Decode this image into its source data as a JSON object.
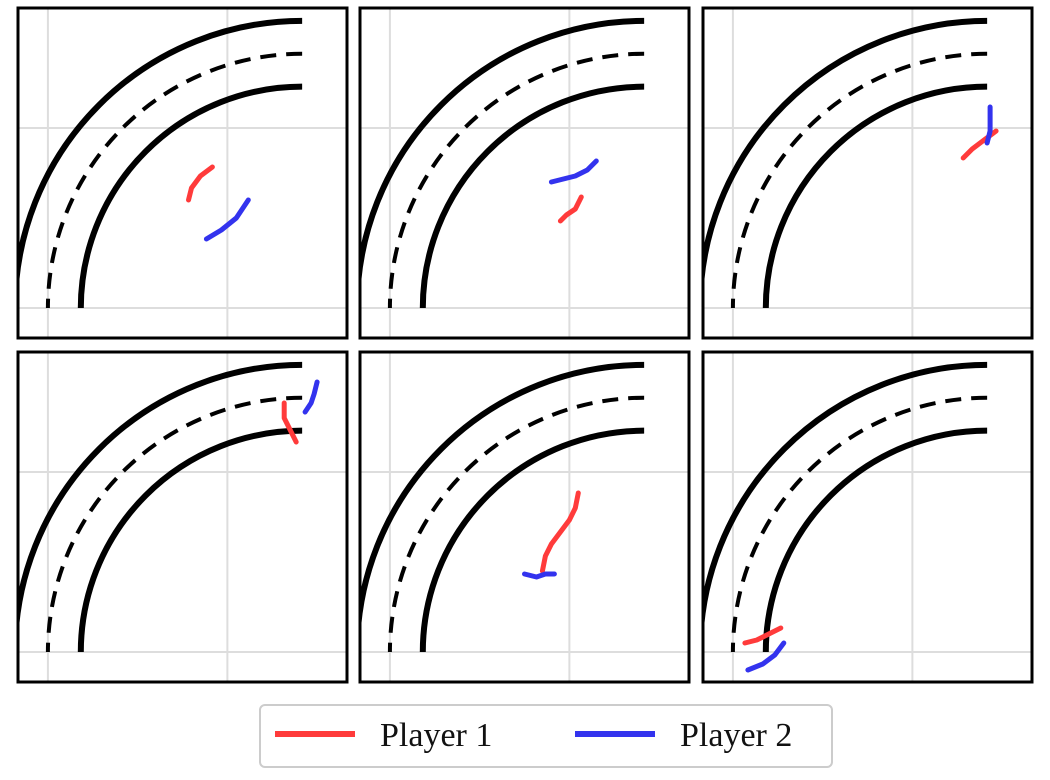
{
  "chart_data": {
    "type": "line",
    "title": "",
    "xlabel": "",
    "ylabel": "",
    "grid": true,
    "legend_position": "bottom-center",
    "layout": "2x3 panel grid",
    "xlim": [
      -1,
      10
    ],
    "ylim": [
      -1,
      10
    ],
    "grid_ticks": [
      0,
      6
    ],
    "track": {
      "center": [
        8.5,
        0
      ],
      "inner_radius": 7.4,
      "lane_divider_radius": 8.5,
      "outer_radius": 9.6,
      "angle_range_deg": [
        90,
        180
      ]
    },
    "series": [
      {
        "name": "Player 1",
        "color": "#ff3b3b"
      },
      {
        "name": "Player 2",
        "color": "#3333ee"
      }
    ],
    "panels": [
      {
        "trajectories": [
          {
            "series": "Player 1",
            "points": [
              [
                5.5,
                4.7
              ],
              [
                5.1,
                4.4
              ],
              [
                4.8,
                4.0
              ],
              [
                4.7,
                3.6
              ]
            ]
          },
          {
            "series": "Player 2",
            "points": [
              [
                6.7,
                3.6
              ],
              [
                6.3,
                3.0
              ],
              [
                5.8,
                2.6
              ],
              [
                5.3,
                2.3
              ]
            ]
          }
        ]
      },
      {
        "trajectories": [
          {
            "series": "Player 1",
            "points": [
              [
                6.4,
                3.7
              ],
              [
                6.2,
                3.3
              ],
              [
                5.9,
                3.1
              ],
              [
                5.7,
                2.9
              ]
            ]
          },
          {
            "series": "Player 2",
            "points": [
              [
                6.9,
                4.9
              ],
              [
                6.6,
                4.6
              ],
              [
                6.2,
                4.4
              ],
              [
                5.4,
                4.2
              ]
            ]
          }
        ]
      },
      {
        "trajectories": [
          {
            "series": "Player 1",
            "points": [
              [
                8.8,
                5.9
              ],
              [
                8.4,
                5.6
              ],
              [
                8.0,
                5.3
              ],
              [
                7.7,
                5.0
              ]
            ]
          },
          {
            "series": "Player 2",
            "points": [
              [
                8.6,
                6.7
              ],
              [
                8.6,
                6.3
              ],
              [
                8.6,
                5.9
              ],
              [
                8.5,
                5.5
              ]
            ]
          }
        ]
      },
      {
        "trajectories": [
          {
            "series": "Player 1",
            "points": [
              [
                7.9,
                8.3
              ],
              [
                7.9,
                7.8
              ],
              [
                8.1,
                7.4
              ],
              [
                8.3,
                7.0
              ]
            ]
          },
          {
            "series": "Player 2",
            "points": [
              [
                9.0,
                9.0
              ],
              [
                8.9,
                8.6
              ],
              [
                8.8,
                8.3
              ],
              [
                8.6,
                8.0
              ]
            ]
          }
        ]
      },
      {
        "trajectories": [
          {
            "series": "Player 1",
            "points": [
              [
                6.3,
                5.3
              ],
              [
                6.2,
                4.8
              ],
              [
                6.0,
                4.4
              ],
              [
                5.7,
                4.0
              ],
              [
                5.4,
                3.6
              ],
              [
                5.2,
                3.2
              ],
              [
                5.1,
                2.7
              ]
            ]
          },
          {
            "series": "Player 2",
            "points": [
              [
                4.5,
                2.6
              ],
              [
                4.9,
                2.5
              ],
              [
                5.2,
                2.6
              ],
              [
                5.5,
                2.6
              ]
            ]
          }
        ]
      },
      {
        "trajectories": [
          {
            "series": "Player 1",
            "points": [
              [
                0.4,
                0.3
              ],
              [
                0.8,
                0.4
              ],
              [
                1.2,
                0.6
              ],
              [
                1.6,
                0.8
              ]
            ]
          },
          {
            "series": "Player 2",
            "points": [
              [
                0.5,
                -0.6
              ],
              [
                1.0,
                -0.4
              ],
              [
                1.4,
                -0.1
              ],
              [
                1.7,
                0.3
              ]
            ]
          }
        ]
      }
    ]
  }
}
